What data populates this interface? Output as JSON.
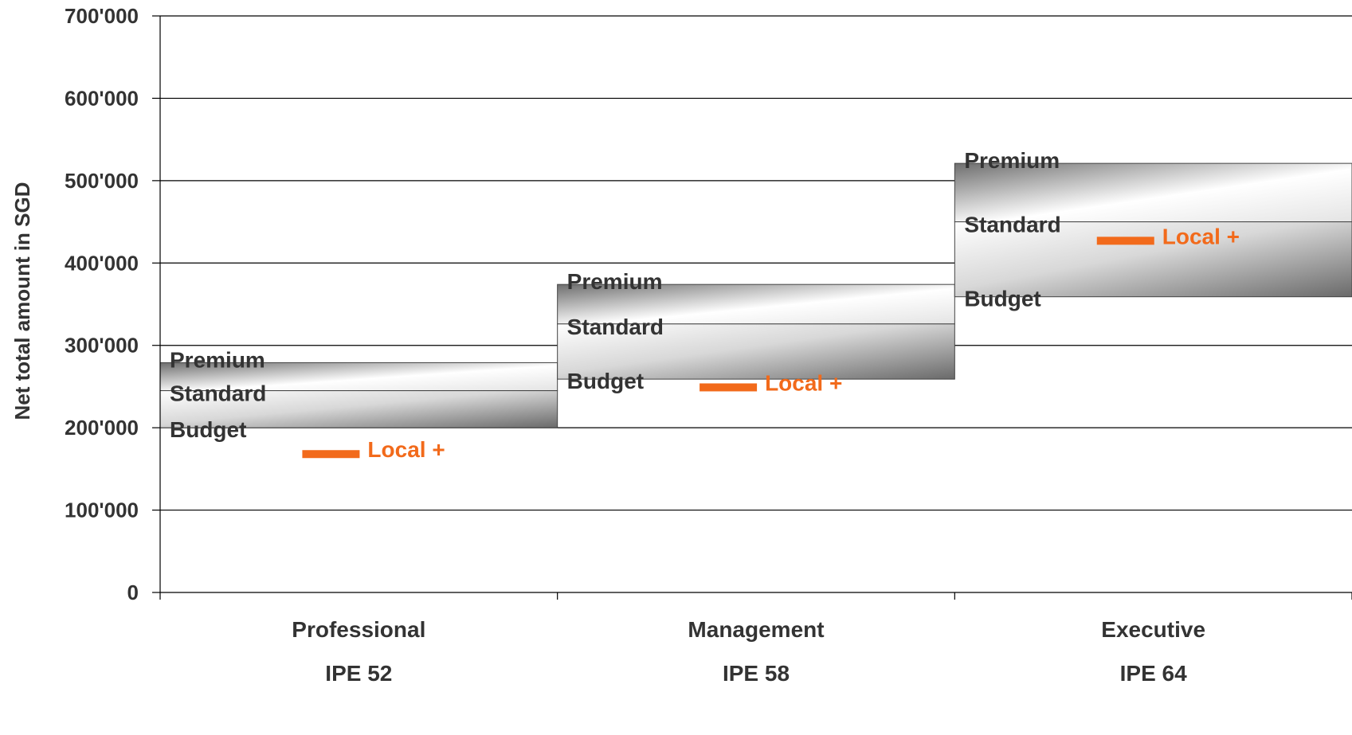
{
  "chart_data": {
    "type": "bar",
    "ylabel": "Net total amount in SGD",
    "ylim": [
      0,
      700000
    ],
    "yticks": [
      0,
      100000,
      200000,
      300000,
      400000,
      500000,
      600000,
      700000
    ],
    "ytick_labels": [
      "0",
      "100'000",
      "200'000",
      "300'000",
      "400'000",
      "500'000",
      "600'000",
      "700'000"
    ],
    "grid": true,
    "categories": [
      {
        "name": "Professional",
        "sub": "IPE 52",
        "budget": 200000,
        "standard": 245000,
        "premium": 279000,
        "local_plus": 168000
      },
      {
        "name": "Management",
        "sub": "IPE 58",
        "budget": 259000,
        "standard": 326000,
        "premium": 374000,
        "local_plus": 249000
      },
      {
        "name": "Executive",
        "sub": "IPE 64",
        "budget": 359000,
        "standard": 450000,
        "premium": 521000,
        "local_plus": 427000
      }
    ],
    "tier_labels": {
      "premium": "Premium",
      "standard": "Standard",
      "budget": "Budget"
    },
    "marker_label": "Local +",
    "colors": {
      "marker": "#f26a1b",
      "text": "#333333",
      "grid": "#000000",
      "band_dark": "#6b6b6b",
      "band_light": "#ffffff"
    }
  }
}
